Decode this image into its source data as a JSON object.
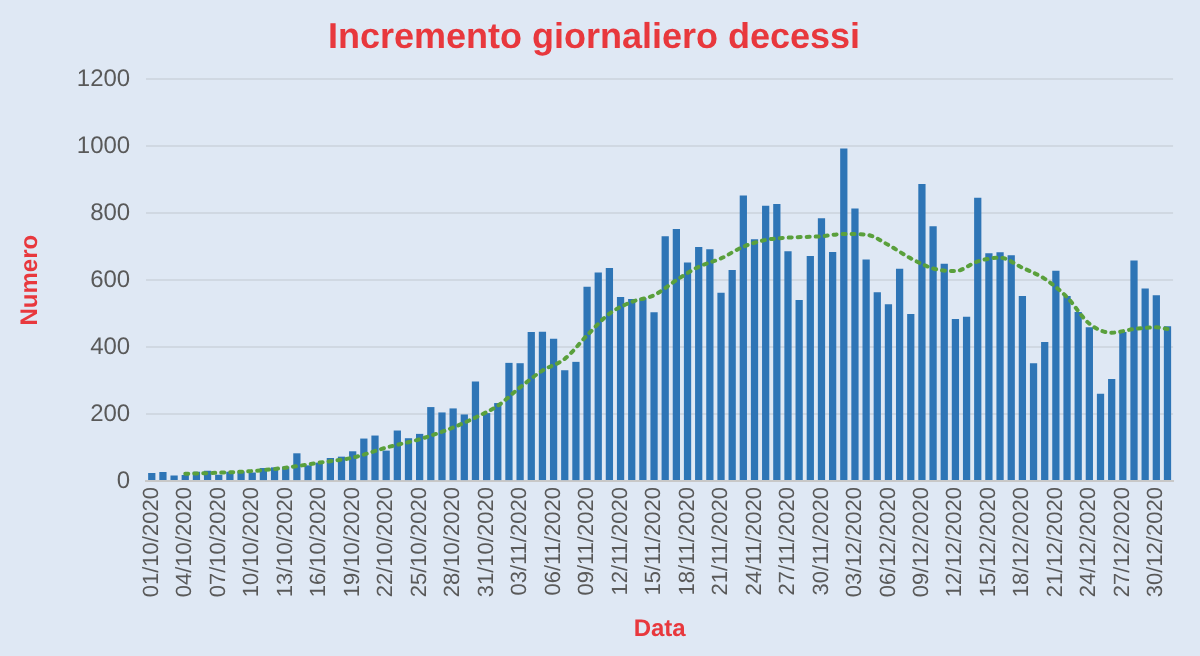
{
  "chart_data": {
    "type": "bar",
    "title": "Incremento giornaliero decessi",
    "xlabel": "Data",
    "ylabel": "Numero",
    "categories": [
      "01/10/2020",
      null,
      null,
      "04/10/2020",
      null,
      null,
      "07/10/2020",
      null,
      null,
      "10/10/2020",
      null,
      null,
      "13/10/2020",
      null,
      null,
      "16/10/2020",
      null,
      null,
      "19/10/2020",
      null,
      null,
      "22/10/2020",
      null,
      null,
      "25/10/2020",
      null,
      null,
      "28/10/2020",
      null,
      null,
      "31/10/2020",
      null,
      null,
      "03/11/2020",
      null,
      null,
      "06/11/2020",
      null,
      null,
      "09/11/2020",
      null,
      null,
      "12/11/2020",
      null,
      null,
      "15/11/2020",
      null,
      null,
      "18/11/2020",
      null,
      null,
      "21/11/2020",
      null,
      null,
      "24/11/2020",
      null,
      null,
      "27/11/2020",
      null,
      null,
      "30/11/2020",
      null,
      null,
      "03/12/2020",
      null,
      null,
      "06/12/2020",
      null,
      null,
      "09/12/2020",
      null,
      null,
      "12/12/2020",
      null,
      null,
      "15/12/2020",
      null,
      null,
      "18/12/2020",
      null,
      null,
      "21/12/2020",
      null,
      null,
      "24/12/2020",
      null,
      null,
      "27/12/2020",
      null,
      null,
      "30/12/2020",
      null
    ],
    "series": [
      {
        "color": "#2e75b6",
        "values": [
          24,
          27,
          17,
          18,
          28,
          31,
          19,
          28,
          29,
          26,
          39,
          41,
          43,
          83,
          47,
          55,
          69,
          73,
          89,
          127,
          136,
          91,
          151,
          128,
          141,
          221,
          205,
          217,
          199,
          297,
          203,
          233,
          353,
          352,
          445,
          446,
          425,
          331,
          356,
          580,
          623,
          636,
          550,
          544,
          546,
          504,
          731,
          753,
          653,
          699,
          692,
          562,
          630,
          853,
          722,
          822,
          827,
          686,
          541,
          672,
          785,
          684,
          993,
          814,
          662,
          564,
          528,
          634,
          499,
          887,
          761,
          649,
          484,
          491,
          846,
          680,
          683,
          674,
          553,
          352,
          415,
          628,
          553,
          505,
          459,
          261,
          305,
          445,
          659,
          575,
          555,
          462
        ]
      },
      {
        "type": "line",
        "color": "#5aa03c",
        "line_style": "dotted",
        "marker": "none",
        "values": [
          null,
          null,
          null,
          22,
          null,
          null,
          25,
          null,
          null,
          30,
          null,
          null,
          40,
          null,
          null,
          55,
          null,
          null,
          70,
          null,
          null,
          100,
          null,
          null,
          125,
          null,
          null,
          160,
          null,
          190,
          null,
          225,
          null,
          280,
          null,
          330,
          null,
          365,
          null,
          435,
          null,
          500,
          null,
          535,
          null,
          555,
          null,
          600,
          null,
          640,
          null,
          665,
          null,
          700,
          null,
          720,
          null,
          727,
          null,
          null,
          731,
          null,
          738,
          null,
          736,
          null,
          705,
          null,
          665,
          null,
          635,
          null,
          627,
          null,
          656,
          null,
          667,
          null,
          637,
          null,
          604,
          null,
          549,
          null,
          470,
          null,
          443,
          null,
          454,
          null,
          459,
          454
        ]
      }
    ],
    "ylim": [
      0,
      1200
    ],
    "yticks": [
      0,
      200,
      400,
      600,
      800,
      1000,
      1200
    ],
    "grid": "y",
    "legend": false
  }
}
